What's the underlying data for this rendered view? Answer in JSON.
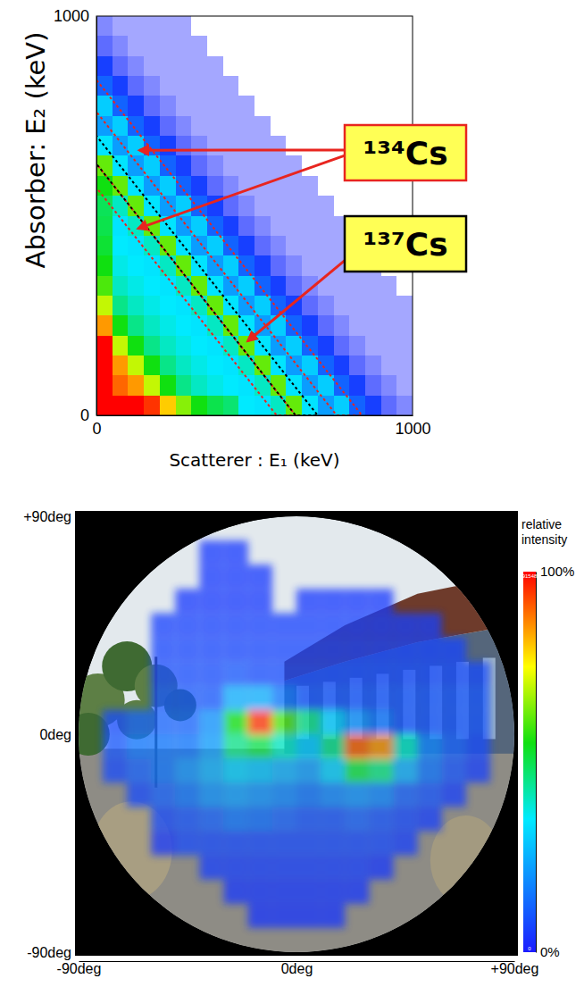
{
  "chart_data": [
    {
      "type": "heatmap",
      "x_label": "Scatterer : E₁ (keV)",
      "y_label": "Absorber: E₂ (keV)",
      "xlim": [
        0,
        1000
      ],
      "ylim": [
        0,
        1000
      ],
      "xticks": [
        0,
        1000
      ],
      "yticks": [
        0,
        1000
      ],
      "x_bins": [
        0,
        50,
        100,
        150,
        200,
        250,
        300,
        350,
        400,
        450,
        500,
        550,
        600,
        650,
        700,
        750,
        800,
        850,
        900,
        950,
        1000
      ],
      "y_bins": [
        0,
        50,
        100,
        150,
        200,
        250,
        300,
        350,
        400,
        450,
        500,
        550,
        600,
        650,
        700,
        750,
        800,
        850,
        900,
        950,
        1000
      ],
      "zlim": [
        0,
        100
      ],
      "cells": [
        [
          100,
          100,
          100,
          95,
          80,
          65,
          55,
          50,
          47,
          35,
          34,
          40,
          62,
          34,
          22,
          30,
          12,
          6,
          3,
          2
        ],
        [
          100,
          90,
          85,
          70,
          55,
          45,
          40,
          37,
          35,
          34,
          40,
          62,
          34,
          22,
          30,
          12,
          6,
          3,
          2,
          1
        ],
        [
          100,
          85,
          70,
          55,
          45,
          40,
          37,
          35,
          34,
          40,
          62,
          34,
          22,
          30,
          12,
          6,
          3,
          2,
          1,
          1
        ],
        [
          100,
          70,
          55,
          45,
          40,
          37,
          35,
          34,
          40,
          62,
          34,
          22,
          30,
          12,
          6,
          3,
          2,
          1,
          1,
          1
        ],
        [
          85,
          55,
          45,
          40,
          37,
          35,
          34,
          40,
          62,
          34,
          22,
          30,
          12,
          6,
          3,
          2,
          1,
          1,
          1,
          1
        ],
        [
          70,
          45,
          40,
          37,
          35,
          34,
          40,
          62,
          34,
          22,
          30,
          12,
          6,
          3,
          2,
          1,
          1,
          1,
          1,
          1
        ],
        [
          60,
          40,
          37,
          35,
          34,
          40,
          62,
          34,
          22,
          30,
          12,
          6,
          3,
          2,
          1,
          1,
          1,
          1,
          1,
          0
        ],
        [
          55,
          37,
          35,
          34,
          40,
          62,
          34,
          22,
          30,
          12,
          6,
          3,
          2,
          1,
          1,
          1,
          1,
          1,
          0,
          0
        ],
        [
          52,
          35,
          34,
          40,
          62,
          34,
          22,
          30,
          12,
          6,
          3,
          2,
          1,
          1,
          1,
          1,
          1,
          0,
          0,
          0
        ],
        [
          50,
          34,
          40,
          62,
          34,
          22,
          30,
          12,
          6,
          3,
          2,
          1,
          1,
          1,
          1,
          1,
          0,
          0,
          0,
          0
        ],
        [
          49,
          40,
          62,
          34,
          22,
          30,
          12,
          6,
          3,
          2,
          1,
          1,
          1,
          1,
          1,
          0,
          0,
          0,
          0,
          0
        ],
        [
          55,
          62,
          34,
          22,
          30,
          12,
          6,
          3,
          2,
          1,
          1,
          1,
          1,
          1,
          0,
          0,
          0,
          0,
          0,
          0
        ],
        [
          62,
          34,
          22,
          30,
          12,
          6,
          3,
          2,
          1,
          1,
          1,
          1,
          1,
          0,
          0,
          0,
          0,
          0,
          0,
          0
        ],
        [
          34,
          22,
          30,
          12,
          6,
          3,
          2,
          1,
          1,
          1,
          1,
          1,
          0,
          0,
          0,
          0,
          0,
          0,
          0,
          0
        ],
        [
          22,
          30,
          12,
          6,
          3,
          2,
          1,
          1,
          1,
          1,
          1,
          0,
          0,
          0,
          0,
          0,
          0,
          0,
          0,
          0
        ],
        [
          30,
          12,
          6,
          3,
          2,
          1,
          1,
          1,
          1,
          1,
          0,
          0,
          0,
          0,
          0,
          0,
          0,
          0,
          0,
          0
        ],
        [
          12,
          6,
          3,
          2,
          1,
          1,
          1,
          1,
          1,
          0,
          0,
          0,
          0,
          0,
          0,
          0,
          0,
          0,
          0,
          0
        ],
        [
          6,
          3,
          2,
          1,
          1,
          1,
          1,
          1,
          0,
          0,
          0,
          0,
          0,
          0,
          0,
          0,
          0,
          0,
          0,
          0
        ],
        [
          3,
          2,
          1,
          1,
          1,
          1,
          1,
          0,
          0,
          0,
          0,
          0,
          0,
          0,
          0,
          0,
          0,
          0,
          0,
          0
        ],
        [
          2,
          1,
          1,
          1,
          1,
          1,
          0,
          0,
          0,
          0,
          0,
          0,
          0,
          0,
          0,
          0,
          0,
          0,
          0,
          0
        ]
      ],
      "annotations": [
        {
          "text": "¹³⁴Cs",
          "color": "#e8251f",
          "windows": [
            [
              760,
              840
            ],
            [
              570,
              630
            ]
          ]
        },
        {
          "text": "¹³⁷Cs",
          "color": "#000000",
          "windows": [
            [
              630,
              700
            ]
          ]
        }
      ]
    },
    {
      "type": "heatmap",
      "xlim": [
        -90,
        90
      ],
      "ylim": [
        -90,
        90
      ],
      "xticks": [
        {
          "value": -90,
          "label": "-90deg"
        },
        {
          "value": 0,
          "label": "0deg"
        },
        {
          "value": 90,
          "label": "+90deg"
        }
      ],
      "yticks": [
        {
          "value": -90,
          "label": "-90deg"
        },
        {
          "value": 0,
          "label": "0deg"
        },
        {
          "value": 90,
          "label": "+90deg"
        }
      ],
      "x_bins": [
        -90,
        -80,
        -70,
        -60,
        -50,
        -40,
        -30,
        -20,
        -10,
        0,
        10,
        20,
        30,
        40,
        50,
        60,
        70,
        80,
        90
      ],
      "y_bins": [
        90,
        80,
        70,
        60,
        50,
        40,
        30,
        20,
        10,
        0,
        -10,
        -20,
        -30,
        -40,
        -50,
        -60,
        -70,
        -80,
        -90
      ],
      "cells": [
        [
          0,
          0,
          0,
          0,
          0,
          0,
          0,
          0,
          0,
          0,
          0,
          0,
          0,
          0,
          0,
          0,
          0,
          0
        ],
        [
          0,
          0,
          0,
          0,
          0,
          5,
          5,
          0,
          0,
          0,
          0,
          0,
          0,
          0,
          0,
          0,
          0,
          0
        ],
        [
          0,
          0,
          0,
          0,
          0,
          5,
          5,
          5,
          0,
          0,
          0,
          0,
          0,
          0,
          0,
          0,
          0,
          0
        ],
        [
          0,
          0,
          0,
          0,
          5,
          5,
          5,
          5,
          0,
          5,
          5,
          5,
          5,
          0,
          0,
          0,
          0,
          0
        ],
        [
          0,
          0,
          0,
          6,
          6,
          6,
          6,
          6,
          6,
          6,
          6,
          6,
          6,
          6,
          6,
          0,
          0,
          0
        ],
        [
          0,
          0,
          0,
          7,
          7,
          7,
          7,
          7,
          7,
          7,
          7,
          7,
          7,
          7,
          7,
          7,
          0,
          0
        ],
        [
          0,
          0,
          0,
          8,
          8,
          8,
          10,
          8,
          8,
          8,
          8,
          8,
          8,
          8,
          8,
          8,
          8,
          0
        ],
        [
          0,
          0,
          0,
          10,
          10,
          10,
          25,
          25,
          15,
          10,
          10,
          10,
          10,
          10,
          10,
          10,
          10,
          0
        ],
        [
          0,
          8,
          12,
          12,
          12,
          20,
          55,
          95,
          60,
          45,
          30,
          20,
          15,
          10,
          10,
          10,
          10,
          0
        ],
        [
          0,
          10,
          15,
          15,
          15,
          22,
          45,
          50,
          40,
          30,
          45,
          90,
          85,
          40,
          18,
          12,
          8,
          0
        ],
        [
          0,
          8,
          12,
          15,
          20,
          25,
          30,
          28,
          25,
          22,
          30,
          50,
          45,
          25,
          15,
          10,
          6,
          0
        ],
        [
          0,
          0,
          8,
          12,
          15,
          20,
          22,
          20,
          18,
          15,
          18,
          20,
          18,
          12,
          10,
          6,
          0,
          0
        ],
        [
          0,
          0,
          0,
          8,
          10,
          12,
          15,
          14,
          12,
          10,
          10,
          12,
          10,
          8,
          6,
          0,
          0,
          0
        ],
        [
          0,
          0,
          0,
          5,
          8,
          8,
          8,
          8,
          8,
          8,
          8,
          8,
          8,
          6,
          0,
          0,
          0,
          0
        ],
        [
          0,
          0,
          0,
          0,
          0,
          6,
          6,
          6,
          6,
          6,
          6,
          6,
          5,
          0,
          0,
          0,
          0,
          0
        ],
        [
          0,
          0,
          0,
          0,
          0,
          0,
          5,
          5,
          5,
          5,
          5,
          5,
          0,
          0,
          0,
          0,
          0,
          0
        ],
        [
          0,
          0,
          0,
          0,
          0,
          0,
          0,
          4,
          4,
          4,
          4,
          0,
          0,
          0,
          0,
          0,
          0,
          0
        ],
        [
          0,
          0,
          0,
          0,
          0,
          0,
          0,
          0,
          0,
          0,
          0,
          0,
          0,
          0,
          0,
          0,
          0,
          0
        ]
      ],
      "color_bar": {
        "title": "relative intensity",
        "range": [
          0,
          100
        ],
        "ticks": [
          {
            "value": 0,
            "label": "0%"
          },
          {
            "value": 100,
            "label": "100%"
          }
        ],
        "counts": [
          0,
          91548
        ]
      }
    }
  ]
}
